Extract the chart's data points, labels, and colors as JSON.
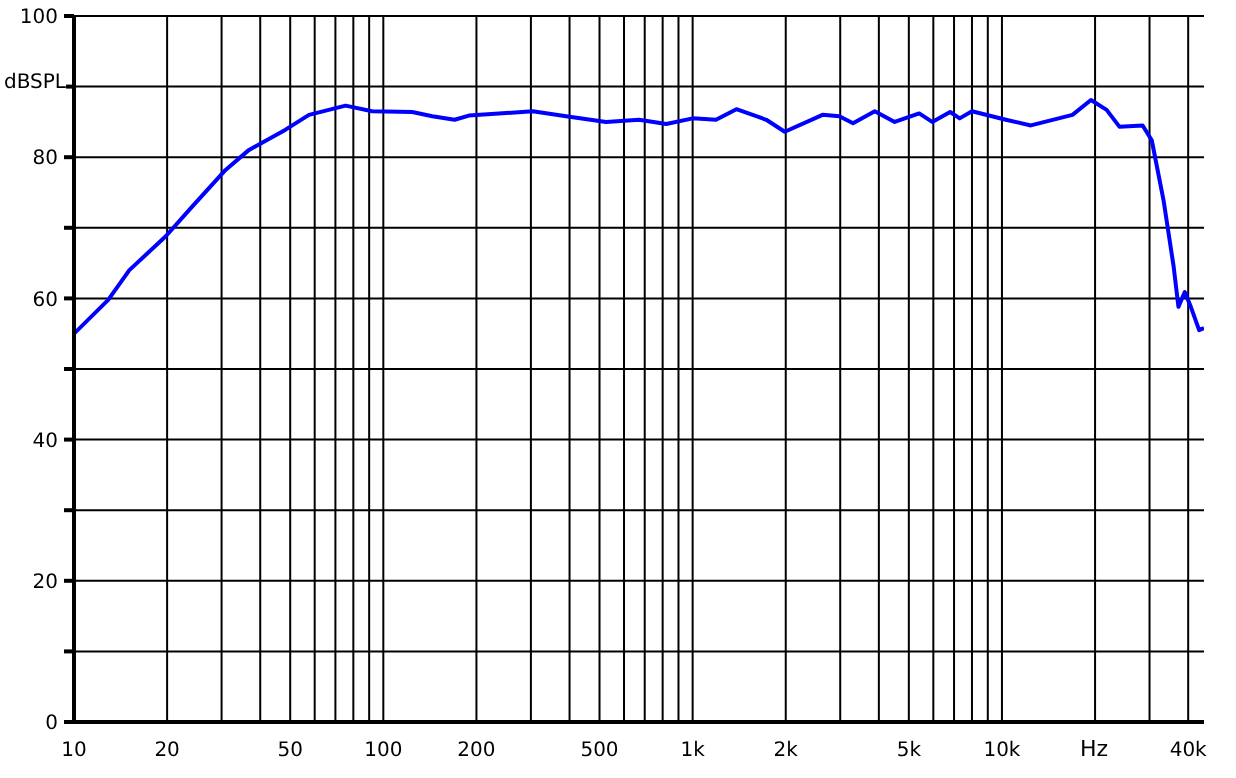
{
  "chart_data": {
    "type": "line",
    "xlabel": "Hz",
    "ylabel": "dBSPL",
    "log": "x",
    "grid": true,
    "marker": "none",
    "line_style": "solid",
    "xlim": [
      10,
      45000
    ],
    "ylim": [
      0,
      100
    ],
    "xticks": [
      10,
      20,
      {
        "value": 30,
        "label": null
      },
      {
        "value": 40,
        "label": null
      },
      50,
      {
        "value": 60,
        "label": null
      },
      {
        "value": 70,
        "label": null
      },
      {
        "value": 80,
        "label": null
      },
      {
        "value": 90,
        "label": null
      },
      100,
      200,
      {
        "value": 300,
        "label": null
      },
      {
        "value": 400,
        "label": null
      },
      500,
      {
        "value": 600,
        "label": null
      },
      {
        "value": 700,
        "label": null
      },
      {
        "value": 800,
        "label": null
      },
      {
        "value": 900,
        "label": null
      },
      {
        "value": 1000,
        "label": "1k"
      },
      {
        "value": 2000,
        "label": "2k"
      },
      {
        "value": 3000,
        "label": null
      },
      {
        "value": 4000,
        "label": null
      },
      {
        "value": 5000,
        "label": "5k"
      },
      {
        "value": 6000,
        "label": null
      },
      {
        "value": 7000,
        "label": null
      },
      {
        "value": 8000,
        "label": null
      },
      {
        "value": 9000,
        "label": null
      },
      {
        "value": 10000,
        "label": "10k"
      },
      {
        "value": 20000,
        "label": null
      },
      {
        "value": 30000,
        "label": null
      },
      {
        "value": 40000,
        "label": "40k"
      }
    ],
    "yticks": [
      0,
      {
        "value": 10,
        "label": null
      },
      20,
      {
        "value": 30,
        "label": null
      },
      40,
      {
        "value": 50,
        "label": null
      },
      60,
      {
        "value": 70,
        "label": null
      },
      80,
      {
        "value": 90,
        "label": null
      },
      100
    ],
    "series": [
      {
        "color": "#0000ff",
        "x": [
          10,
          12.9,
          15.1,
          19.8,
          24.1,
          30.9,
          36.7,
          48.3,
          57.5,
          75.5,
          92,
          124,
          144,
          170,
          189,
          304,
          390,
          525,
          671,
          822,
          1000,
          1190,
          1385,
          1730,
          1985,
          2630,
          2980,
          3300,
          3880,
          4500,
          5400,
          5950,
          6800,
          7300,
          8000,
          10300,
          12400,
          16900,
          19400,
          21800,
          24000,
          28500,
          30500,
          33300,
          35900,
          37200,
          39000,
          40800,
          43400,
          45000
        ],
        "values": [
          55.0,
          59.8,
          64.0,
          68.8,
          73.0,
          78.2,
          81.0,
          83.9,
          86.0,
          87.3,
          86.5,
          86.4,
          85.8,
          85.3,
          85.9,
          86.5,
          85.8,
          85.0,
          85.3,
          84.7,
          85.5,
          85.3,
          86.8,
          85.3,
          83.6,
          86.0,
          85.8,
          84.8,
          86.5,
          85.0,
          86.2,
          85.0,
          86.4,
          85.5,
          86.5,
          85.3,
          84.5,
          86.0,
          88.1,
          86.7,
          84.3,
          84.5,
          82.4,
          73.9,
          64.5,
          58.8,
          60.9,
          58.8,
          55.5,
          55.8
        ]
      }
    ]
  }
}
